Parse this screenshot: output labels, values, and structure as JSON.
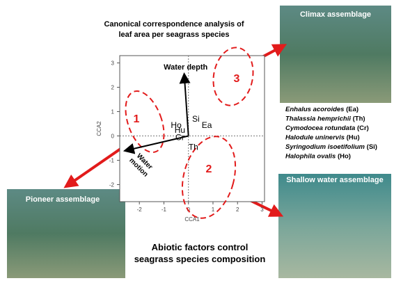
{
  "chart_data": {
    "type": "scatter",
    "title": "Canonical correspondence analysis of leaf area per seagrass species",
    "x_label": "CCA1",
    "y_label": "CCA2",
    "xlim": [
      -2.8,
      3.1
    ],
    "ylim": [
      -2.7,
      3.3
    ],
    "xticks": [
      -2,
      -1,
      0,
      1,
      2,
      3
    ],
    "yticks": [
      -2,
      -1,
      0,
      1,
      2,
      3
    ],
    "categories": [
      "Ho",
      "Hu",
      "Cr",
      "Si",
      "Ea",
      "Th"
    ],
    "x": [
      -0.5,
      -0.35,
      -0.35,
      0.3,
      0.75,
      0.2
    ],
    "values": [
      0.45,
      0.25,
      -0.05,
      0.7,
      0.45,
      -0.45
    ],
    "vectors": [
      {
        "name": "Water depth",
        "x": -0.17,
        "y": 2.5
      },
      {
        "name": "Water motion",
        "x": -2.55,
        "y": -0.6
      }
    ],
    "groups": [
      "1",
      "2",
      "3"
    ],
    "photos": [
      "Climax assemblage",
      "Pioneer assemblage",
      "Shallow water assemblage"
    ],
    "species": [
      {
        "name": "Enhalus acoroides",
        "code": "(Ea)"
      },
      {
        "name": "Thalassia hemprichii",
        "code": "(Th)"
      },
      {
        "name": "Cymodocea rotundata",
        "code": "(Cr)"
      },
      {
        "name": "Halodule uninervis",
        "code": "(Hu)"
      },
      {
        "name": "Syringodium isoetifolium",
        "code": "(Si)"
      },
      {
        "name": "Halophila ovalis",
        "code": "(Ho)"
      }
    ],
    "conclusion": "Abiotic factors control seagrass species composition"
  }
}
